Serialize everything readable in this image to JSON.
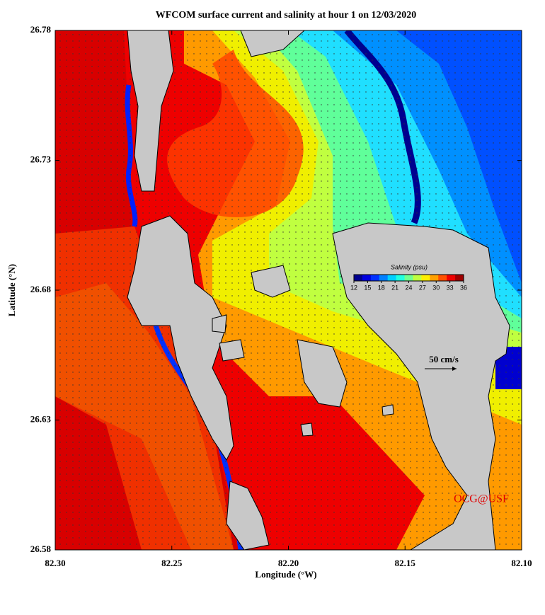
{
  "chart_data": {
    "type": "map",
    "title": "WFCOM surface current and salinity at hour 1 on 12/03/2020",
    "xlabel": "Longitude (°W)",
    "ylabel": "Latitude (°N)",
    "xlim": [
      82.3,
      82.1
    ],
    "xticks": [
      {
        "value": 82.3,
        "label": "82.30"
      },
      82.25,
      {
        "value": 82.2,
        "label": "82.20"
      },
      82.15,
      {
        "value": 82.1,
        "label": "82.10"
      }
    ],
    "ylim": [
      26.58,
      26.78
    ],
    "yticks": [
      26.58,
      26.63,
      26.68,
      26.73,
      26.78
    ],
    "colorbar": {
      "title": "Salinity (psu)",
      "lim": [
        12,
        36
      ],
      "ticks": [
        12,
        15,
        18,
        21,
        24,
        27,
        30,
        33,
        36
      ],
      "colors": [
        "#00008f",
        "#0000df",
        "#0030ff",
        "#0080ff",
        "#00cfff",
        "#20ffdf",
        "#70ff90",
        "#c0ff40",
        "#ffef00",
        "#ffa000",
        "#ff5000",
        "#ef0000",
        "#9f0000"
      ]
    },
    "scale_label": "50 cm/s",
    "credit": "OCG@USF"
  }
}
